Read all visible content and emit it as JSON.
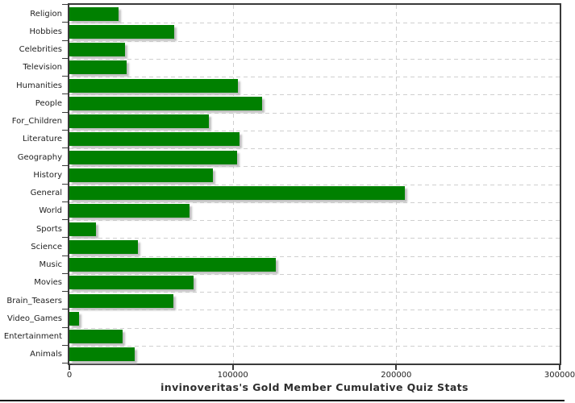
{
  "chart_data": {
    "type": "bar",
    "orientation": "horizontal",
    "title": "invinoveritas's Gold Member Cumulative Quiz Stats",
    "xlabel": "",
    "ylabel": "",
    "categories": [
      "Religion",
      "Hobbies",
      "Celebrities",
      "Television",
      "Humanities",
      "People",
      "For_Children",
      "Literature",
      "Geography",
      "History",
      "General",
      "World",
      "Sports",
      "Science",
      "Music",
      "Movies",
      "Brain_Teasers",
      "Video_Games",
      "Entertainment",
      "Animals"
    ],
    "values": [
      30000,
      64000,
      34000,
      35000,
      103000,
      118000,
      85500,
      104000,
      102500,
      88000,
      205500,
      73500,
      16500,
      42000,
      126500,
      76000,
      63500,
      6000,
      32500,
      40000
    ],
    "xlim": [
      0,
      300000
    ],
    "x_ticks": [
      0,
      100000,
      200000,
      300000
    ],
    "x_tick_labels": [
      "0",
      "100000",
      "200000",
      "300000"
    ],
    "grid": true,
    "legend": "none",
    "bar_color": "#008000",
    "shadow_color": "#bfbfbf",
    "gridline_color": "#cfcfcf",
    "axis_color": "#3a3a3a",
    "text_color": "#1f1f1f",
    "background_color": "#ffffff"
  }
}
